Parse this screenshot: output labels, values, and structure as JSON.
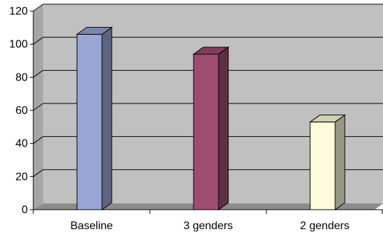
{
  "chart_data": {
    "type": "bar",
    "style": "3d-column",
    "categories": [
      "Baseline",
      "3 genders",
      "2 genders"
    ],
    "values": [
      106,
      94,
      53
    ],
    "colors": [
      "#99a6d6",
      "#9e4c72",
      "#fcfcdc"
    ],
    "ylim": [
      0,
      120
    ],
    "yticks": [
      0,
      20,
      40,
      60,
      80,
      100,
      120
    ],
    "ytick_labels": [
      "0",
      "20",
      "40",
      "60",
      "80",
      "100",
      "120"
    ],
    "grid": true,
    "legend": "none",
    "plot_background": "#c0c0c0"
  }
}
